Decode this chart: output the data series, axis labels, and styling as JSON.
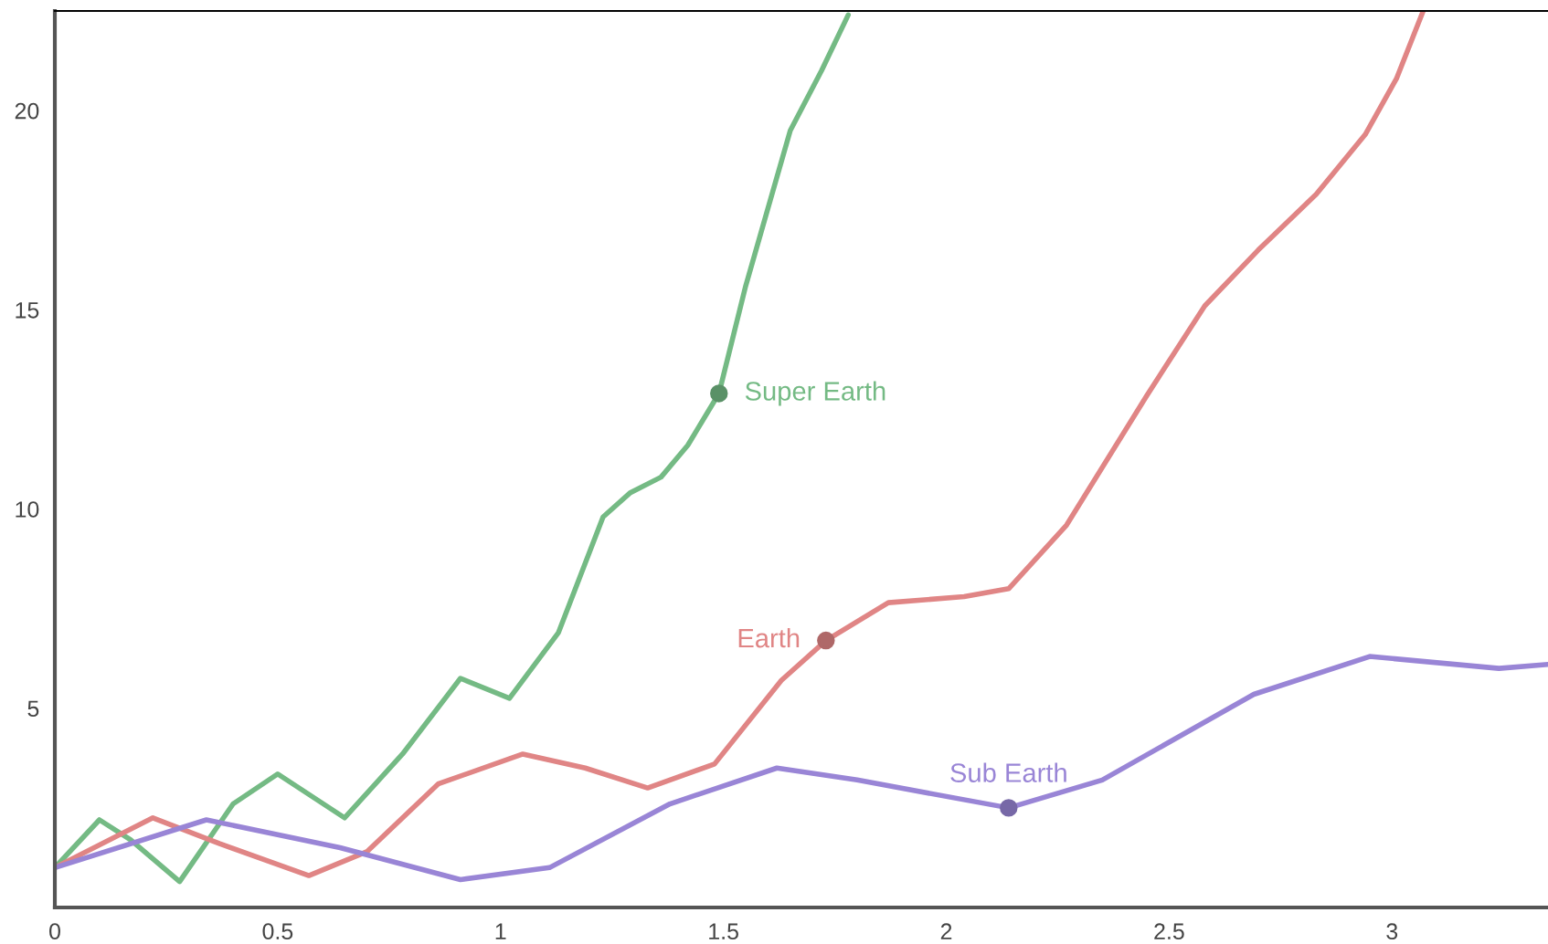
{
  "chart_data": {
    "type": "line",
    "xlim": [
      0,
      3.35
    ],
    "ylim": [
      0,
      22.5
    ],
    "xticks": [
      0,
      0.5,
      1,
      1.5,
      2,
      2.5,
      3
    ],
    "yticks": [
      5,
      10,
      15,
      20
    ],
    "grid": false,
    "legend": false,
    "marker": "none",
    "line_style": "solid",
    "series": [
      {
        "color": "#74ba84",
        "x": [
          0,
          0.1,
          0.17,
          0.28,
          0.4,
          0.5,
          0.65,
          0.78,
          0.91,
          1.02,
          1.13,
          1.23,
          1.29,
          1.36,
          1.42,
          1.49,
          1.55,
          1.65,
          1.72,
          1.78
        ],
        "values": [
          1.0,
          2.2,
          1.7,
          0.65,
          2.6,
          3.35,
          2.25,
          3.85,
          5.75,
          5.25,
          6.9,
          9.8,
          10.4,
          10.8,
          11.6,
          12.9,
          15.6,
          19.5,
          21.0,
          22.4
        ]
      },
      {
        "color": "#e08585",
        "x": [
          0,
          0.22,
          0.37,
          0.57,
          0.7,
          0.86,
          1.05,
          1.19,
          1.33,
          1.48,
          1.63,
          1.73,
          1.87,
          2.04,
          2.14,
          2.27,
          2.45,
          2.58,
          2.7,
          2.83,
          2.94,
          3.01,
          3.07
        ],
        "values": [
          1.0,
          2.25,
          1.6,
          0.8,
          1.4,
          3.1,
          3.85,
          3.5,
          3.0,
          3.6,
          5.7,
          6.7,
          7.65,
          7.8,
          8.0,
          9.6,
          12.85,
          15.1,
          16.5,
          17.9,
          19.4,
          20.8,
          22.5
        ]
      },
      {
        "color": "#9985d6",
        "x": [
          0,
          0.34,
          0.64,
          0.91,
          1.11,
          1.38,
          1.62,
          1.8,
          2.14,
          2.35,
          2.69,
          2.95,
          3.24,
          3.35
        ],
        "values": [
          1.0,
          2.2,
          1.5,
          0.7,
          1.0,
          2.6,
          3.5,
          3.2,
          2.5,
          3.2,
          5.35,
          6.3,
          6.0,
          6.1
        ]
      }
    ],
    "annotations": [
      {
        "text": "Super Earth",
        "x": 1.49,
        "y": 12.9
      },
      {
        "text": "Earth",
        "x": 1.73,
        "y": 6.7
      },
      {
        "text": "Sub Earth",
        "x": 2.14,
        "y": 2.5
      }
    ]
  }
}
